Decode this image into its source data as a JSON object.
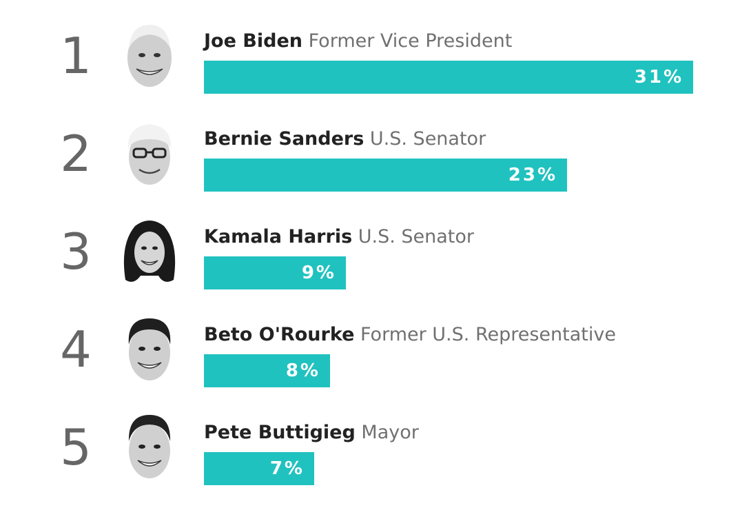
{
  "chart_data": {
    "type": "bar",
    "orientation": "horizontal",
    "categories": [
      "Joe Biden",
      "Bernie Sanders",
      "Kamala Harris",
      "Beto O'Rourke",
      "Pete Buttigieg"
    ],
    "values": [
      31,
      23,
      9,
      8,
      7
    ],
    "value_labels": [
      "31%",
      "23%",
      "9%",
      "8%",
      "7%"
    ],
    "bar_color": "#20c2bf",
    "xlim": [
      0,
      31
    ]
  },
  "candidates": [
    {
      "rank": "1",
      "name": "Joe Biden",
      "role": "Former Vice President",
      "pct": "31%",
      "portrait": "joe-biden-portrait"
    },
    {
      "rank": "2",
      "name": "Bernie Sanders",
      "role": "U.S. Senator",
      "pct": "23%",
      "portrait": "bernie-sanders-portrait"
    },
    {
      "rank": "3",
      "name": "Kamala Harris",
      "role": "U.S. Senator",
      "pct": "9%",
      "portrait": "kamala-harris-portrait"
    },
    {
      "rank": "4",
      "name": "Beto O'Rourke",
      "role": "Former U.S. Representative",
      "pct": "8%",
      "portrait": "beto-orourke-portrait"
    },
    {
      "rank": "5",
      "name": "Pete Buttigieg",
      "role": "Mayor",
      "pct": "7%",
      "portrait": "pete-buttigieg-portrait"
    }
  ],
  "colors": {
    "bar": "#20c2bf",
    "rank": "#666666",
    "name": "#222222",
    "role": "#707070"
  }
}
